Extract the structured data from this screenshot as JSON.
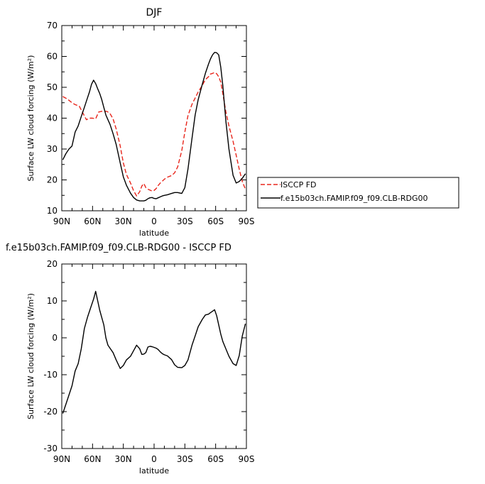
{
  "chart_data": [
    {
      "type": "line",
      "title": "DJF",
      "xlabel": "latitude",
      "ylabel": "Surface LW cloud forcing (W/m²)",
      "xlim": [
        90,
        -90
      ],
      "ylim": [
        10,
        70
      ],
      "x_ticks": [
        {
          "value": 90,
          "label": "90N"
        },
        {
          "value": 60,
          "label": "60N"
        },
        {
          "value": 30,
          "label": "30N"
        },
        {
          "value": 0,
          "label": "0"
        },
        {
          "value": -30,
          "label": "30S"
        },
        {
          "value": -60,
          "label": "60S"
        },
        {
          "value": -90,
          "label": "90S"
        }
      ],
      "y_ticks": [
        10,
        20,
        30,
        40,
        50,
        60,
        70
      ],
      "legend_position": "right",
      "series": [
        {
          "name": "ISCCP FD",
          "color": "#e8251b",
          "dash": "dashed",
          "x": [
            89,
            85,
            80,
            77,
            73,
            70,
            66,
            63,
            60,
            57,
            54,
            50,
            46,
            43,
            40,
            37,
            33,
            30,
            27,
            23,
            20,
            17,
            14,
            12,
            10,
            8,
            6,
            4,
            2,
            0,
            -2,
            -4,
            -6,
            -8,
            -10,
            -13,
            -17,
            -20,
            -23,
            -27,
            -30,
            -33,
            -37,
            -40,
            -43,
            -47,
            -50,
            -53,
            -55,
            -57,
            -59,
            -61,
            -63,
            -65,
            -67,
            -70,
            -73,
            -77,
            -80,
            -83,
            -86,
            -89
          ],
          "y": [
            47,
            46.3,
            45,
            44.4,
            43.9,
            42,
            39.5,
            40,
            40,
            39.8,
            42,
            42.3,
            42.2,
            41.5,
            39.8,
            36.5,
            31,
            25.5,
            21.8,
            19,
            16.5,
            14.8,
            16.2,
            18,
            18.8,
            17.5,
            17,
            16.7,
            16.4,
            16.6,
            17.2,
            18.2,
            19,
            19.6,
            20.2,
            20.9,
            21.4,
            22.3,
            24.2,
            29.5,
            35.5,
            40.8,
            44.5,
            46.5,
            48.5,
            50.6,
            52.5,
            53.4,
            54.3,
            54.5,
            54.8,
            54.4,
            53.4,
            51.7,
            48,
            42,
            37.5,
            32.5,
            28,
            23.5,
            19.5,
            17
          ]
        },
        {
          "name": "f.e15b03ch.FAMIP.f09_f09.CLB-RDG00",
          "color": "#000000",
          "dash": "solid",
          "x": [
            89,
            86,
            83,
            80,
            77,
            74,
            71,
            68,
            65,
            63,
            61,
            59,
            57,
            55,
            53,
            51,
            49,
            47,
            45,
            43,
            40,
            37,
            33,
            30,
            27,
            23,
            20,
            17,
            14,
            12,
            10,
            8,
            6,
            4,
            2,
            0,
            -2,
            -4,
            -6,
            -8,
            -10,
            -13,
            -17,
            -20,
            -23,
            -27,
            -30,
            -33,
            -37,
            -40,
            -43,
            -47,
            -50,
            -53,
            -55,
            -57,
            -59,
            -61,
            -63,
            -65,
            -67,
            -70,
            -73,
            -77,
            -80,
            -83,
            -86,
            -89
          ],
          "y": [
            26.5,
            28.5,
            30,
            31,
            35.5,
            37.5,
            40.5,
            43.5,
            46.5,
            48.5,
            51,
            52.3,
            51.2,
            49.5,
            48,
            46,
            43.5,
            41,
            39.5,
            38,
            35,
            31.5,
            25.5,
            21,
            18.3,
            15.7,
            14.3,
            13.5,
            13.2,
            13.2,
            13.2,
            13.4,
            13.9,
            14.2,
            14.3,
            14,
            13.9,
            14.2,
            14.5,
            14.8,
            15,
            15.2,
            15.6,
            15.9,
            15.9,
            15.6,
            17.5,
            23.5,
            33.5,
            41,
            46,
            51,
            54.5,
            57.5,
            59.2,
            60.5,
            61.3,
            61.2,
            60.5,
            56.5,
            50.5,
            39,
            30,
            21.5,
            19,
            19.5,
            20.5,
            22
          ]
        }
      ]
    },
    {
      "type": "line",
      "title": "f.e15b03ch.FAMIP.f09_f09.CLB-RDG00 - ISCCP FD",
      "xlabel": "latitude",
      "ylabel": "Surface LW cloud forcing (W/m²)",
      "xlim": [
        90,
        -90
      ],
      "ylim": [
        -30,
        20
      ],
      "x_ticks": [
        {
          "value": 90,
          "label": "90N"
        },
        {
          "value": 60,
          "label": "60N"
        },
        {
          "value": 30,
          "label": "30N"
        },
        {
          "value": 0,
          "label": "0"
        },
        {
          "value": -30,
          "label": "30S"
        },
        {
          "value": -60,
          "label": "60S"
        },
        {
          "value": -90,
          "label": "90S"
        }
      ],
      "y_ticks": [
        -30,
        -20,
        -10,
        0,
        10,
        20
      ],
      "series": [
        {
          "color": "#000000",
          "dash": "solid",
          "x": [
            89,
            86,
            83,
            80,
            77,
            74,
            71,
            68,
            65,
            62,
            59,
            57,
            55,
            53,
            51,
            49,
            47,
            45,
            43,
            40,
            37,
            33,
            30,
            27,
            23,
            20,
            17,
            14,
            12,
            10,
            8,
            6,
            4,
            2,
            0,
            -2,
            -4,
            -6,
            -8,
            -10,
            -13,
            -17,
            -20,
            -23,
            -27,
            -30,
            -33,
            -37,
            -40,
            -43,
            -47,
            -50,
            -53,
            -55,
            -57,
            -59,
            -61,
            -63,
            -65,
            -67,
            -70,
            -73,
            -77,
            -80,
            -83,
            -86,
            -89
          ],
          "y": [
            -20.5,
            -18,
            -15.5,
            -13,
            -9,
            -7,
            -3,
            2.5,
            5.5,
            8,
            10.5,
            12.6,
            10,
            7.5,
            5.5,
            3.5,
            0,
            -2,
            -2.8,
            -4,
            -6,
            -8.3,
            -7.5,
            -6,
            -5,
            -3.5,
            -2,
            -3,
            -4.5,
            -4.4,
            -4,
            -2.5,
            -2.3,
            -2.4,
            -2.6,
            -2.8,
            -3.2,
            -3.8,
            -4.3,
            -4.6,
            -4.9,
            -5.9,
            -7.3,
            -8,
            -8.1,
            -7.5,
            -6,
            -2,
            0.5,
            3,
            5,
            6.2,
            6.4,
            6.8,
            7.2,
            7.6,
            6,
            3.5,
            1,
            -1,
            -3,
            -5,
            -7,
            -7.5,
            -4.8,
            0.5,
            3.8
          ]
        }
      ]
    }
  ]
}
